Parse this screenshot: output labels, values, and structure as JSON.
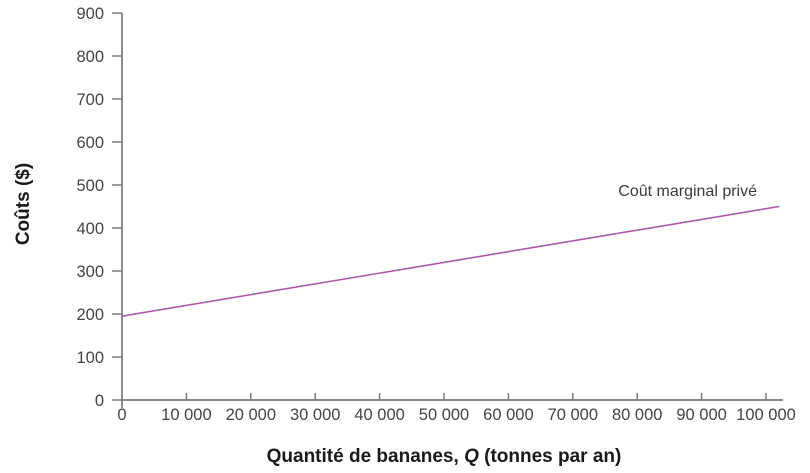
{
  "chart_data": {
    "type": "line",
    "title": "",
    "xlabel": "Quantité de bananes, Q (tonnes par an)",
    "xlabel_parts": [
      "Quantité de bananes, ",
      "Q",
      " (tonnes par an)"
    ],
    "ylabel": "Coûts ($)",
    "xlim": [
      0,
      103500
    ],
    "ylim": [
      0,
      900
    ],
    "grid": false,
    "legend_position": "none (inline curve label)",
    "x_ticks": {
      "values": [
        0,
        10000,
        20000,
        30000,
        40000,
        50000,
        60000,
        70000,
        80000,
        90000,
        100000
      ],
      "labels": [
        "0",
        "10 000",
        "20 000",
        "30 000",
        "40 000",
        "50 000",
        "60 000",
        "70 000",
        "80 000",
        "90 000",
        "100 000"
      ]
    },
    "y_ticks": {
      "values": [
        0,
        100,
        200,
        300,
        400,
        500,
        600,
        700,
        800,
        900
      ],
      "labels": [
        "0",
        "100",
        "200",
        "300",
        "400",
        "500",
        "600",
        "700",
        "800",
        "900"
      ]
    },
    "series": [
      {
        "name": "Coût marginal privé",
        "x": [
          0,
          102000
        ],
        "y": [
          195,
          450
        ],
        "color": "#a85ba5",
        "style": "solid straight line"
      }
    ],
    "annotation": {
      "text": "Coût marginal privé"
    }
  },
  "colors": {
    "background": "#ffffff",
    "axis": "#7a7a7a",
    "tick_label": "#444444",
    "axis_title": "#1a1a1a",
    "annotation_text": "#3a3a3a",
    "line": "#a85ba5"
  }
}
